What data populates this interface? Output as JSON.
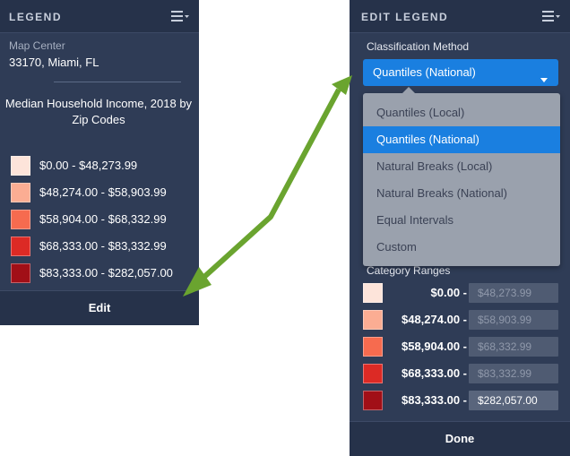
{
  "legend_panel": {
    "title": "LEGEND",
    "map_center_label": "Map Center",
    "map_center_value": "33170, Miami, FL",
    "legend_title": "Median Household Income, 2018 by Zip Codes",
    "rows": [
      {
        "label": "$0.00 - $48,273.99",
        "color": "#fde4da"
      },
      {
        "label": "$48,274.00 - $58,903.99",
        "color": "#fbad93"
      },
      {
        "label": "$58,904.00 - $68,332.99",
        "color": "#f66b4f"
      },
      {
        "label": "$68,333.00 - $83,332.99",
        "color": "#dc2a25"
      },
      {
        "label": "$83,333.00 - $282,057.00",
        "color": "#a10f17"
      }
    ],
    "footer_button": "Edit"
  },
  "edit_panel": {
    "title": "EDIT LEGEND",
    "classification_label": "Classification Method",
    "selected_method": "Quantiles (National)",
    "options": [
      "Quantiles (Local)",
      "Quantiles (National)",
      "Natural Breaks (Local)",
      "Natural Breaks (National)",
      "Equal Intervals",
      "Custom"
    ],
    "selected_index": 1,
    "category_ranges_label": "Category Ranges",
    "ranges": [
      {
        "min": "$0.00 -",
        "max": "$48,273.99",
        "color": "#fde4da"
      },
      {
        "min": "$48,274.00 -",
        "max": "$58,903.99",
        "color": "#fbad93"
      },
      {
        "min": "$58,904.00 -",
        "max": "$68,332.99",
        "color": "#f66b4f"
      },
      {
        "min": "$68,333.00 -",
        "max": "$83,332.99",
        "color": "#dc2a25"
      },
      {
        "min": "$83,333.00 -",
        "max": "$282,057.00",
        "color": "#a10f17"
      }
    ],
    "footer_button": "Done"
  },
  "colors": {
    "panel_bg": "#2f3c56",
    "accent": "#1a7fe0",
    "arrow": "#6aa42f"
  },
  "icons": {
    "menu": "hamburger-menu-icon",
    "dropdown": "caret-down-icon"
  }
}
